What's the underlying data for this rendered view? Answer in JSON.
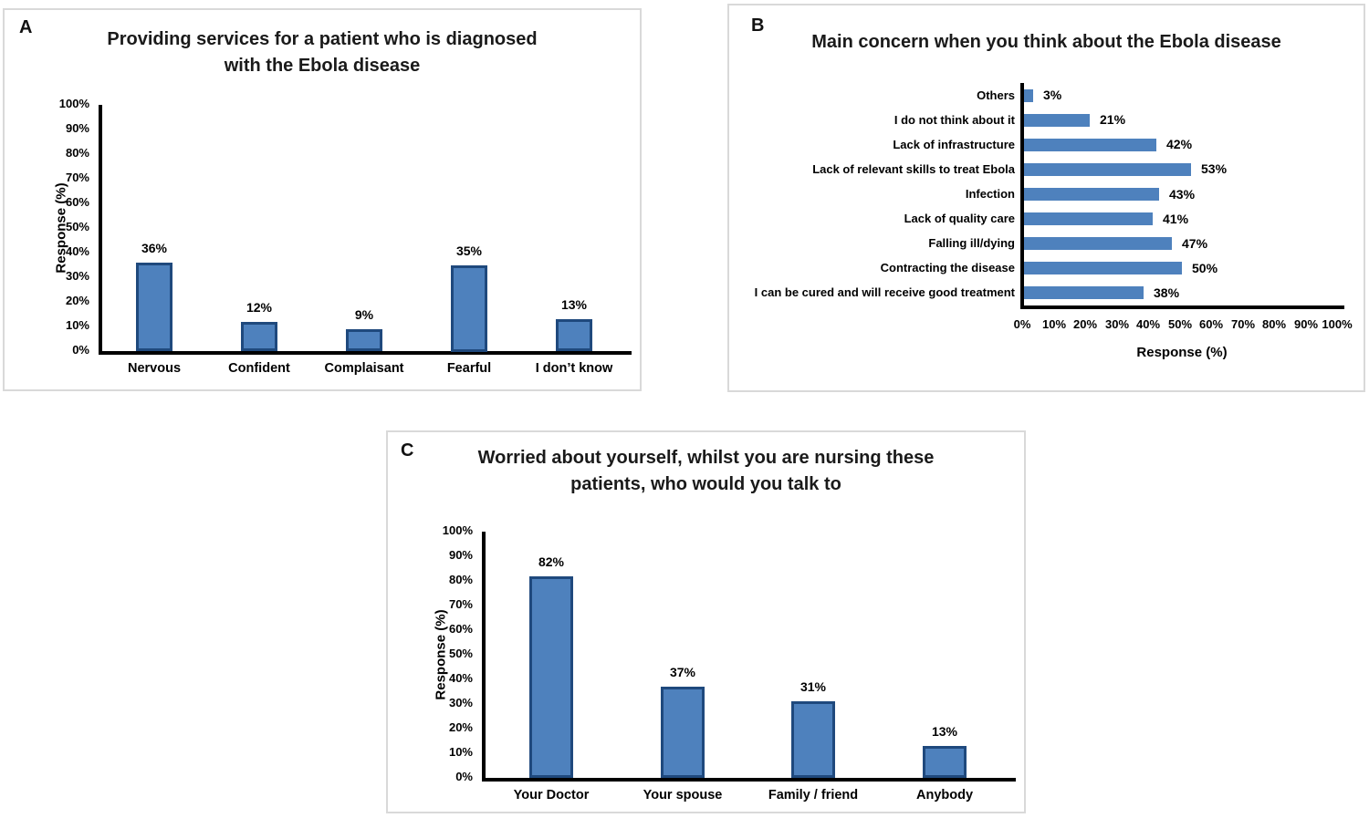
{
  "figure": {
    "description_labels": [
      "A",
      "B",
      "C"
    ]
  },
  "colors": {
    "bar_fill": "#4E81BD",
    "bar_border": "#1F497D",
    "axis": "#000000",
    "panel_border": "#D9D9D9",
    "text": "#111111"
  },
  "chart_data": [
    {
      "panel_letter": "A",
      "type": "bar",
      "title": "Providing services for a patient who is diagnosed with the Ebola disease",
      "categories": [
        "Nervous",
        "Confident",
        "Complaisant",
        "Fearful",
        "I don’t know"
      ],
      "values": [
        36,
        12,
        9,
        35,
        13
      ],
      "value_labels": [
        "36%",
        "12%",
        "9%",
        "35%",
        "13%"
      ],
      "xlabel": "",
      "ylabel": "Response (%)",
      "yticks": [
        "100%",
        "90%",
        "80%",
        "70%",
        "60%",
        "50%",
        "40%",
        "30%",
        "20%",
        "10%",
        "0%"
      ],
      "ylim": [
        0,
        100
      ],
      "grid": false,
      "legend": "none"
    },
    {
      "panel_letter": "B",
      "type": "horizontal-bar",
      "title": "Main concern when you think about the Ebola disease",
      "categories": [
        "Others",
        "I do not think about it",
        "Lack of infrastructure",
        "Lack of relevant skills to treat Ebola",
        "Infection",
        "Lack of quality care",
        "Falling ill/dying",
        "Contracting the disease",
        "I can be cured and will receive good treatment"
      ],
      "values": [
        3,
        21,
        42,
        53,
        43,
        41,
        47,
        50,
        38
      ],
      "value_labels": [
        "3%",
        "21%",
        "42%",
        "53%",
        "43%",
        "41%",
        "47%",
        "50%",
        "38%"
      ],
      "xlabel": "Response (%)",
      "ylabel": "",
      "xticks": [
        "0%",
        "10%",
        "20%",
        "30%",
        "40%",
        "50%",
        "60%",
        "70%",
        "80%",
        "90%",
        "100%"
      ],
      "xlim": [
        0,
        100
      ],
      "grid": false,
      "legend": "none"
    },
    {
      "panel_letter": "C",
      "type": "bar",
      "title": "Worried about yourself, whilst you are nursing these patients, who would you talk to",
      "categories": [
        "Your Doctor",
        "Your spouse",
        "Family / friend",
        "Anybody"
      ],
      "values": [
        82,
        37,
        31,
        13
      ],
      "value_labels": [
        "82%",
        "37%",
        "31%",
        "13%"
      ],
      "xlabel": "",
      "ylabel": "Response (%)",
      "yticks": [
        "100%",
        "90%",
        "80%",
        "70%",
        "60%",
        "50%",
        "40%",
        "30%",
        "20%",
        "10%",
        "0%"
      ],
      "ylim": [
        0,
        100
      ],
      "grid": false,
      "legend": "none"
    }
  ]
}
